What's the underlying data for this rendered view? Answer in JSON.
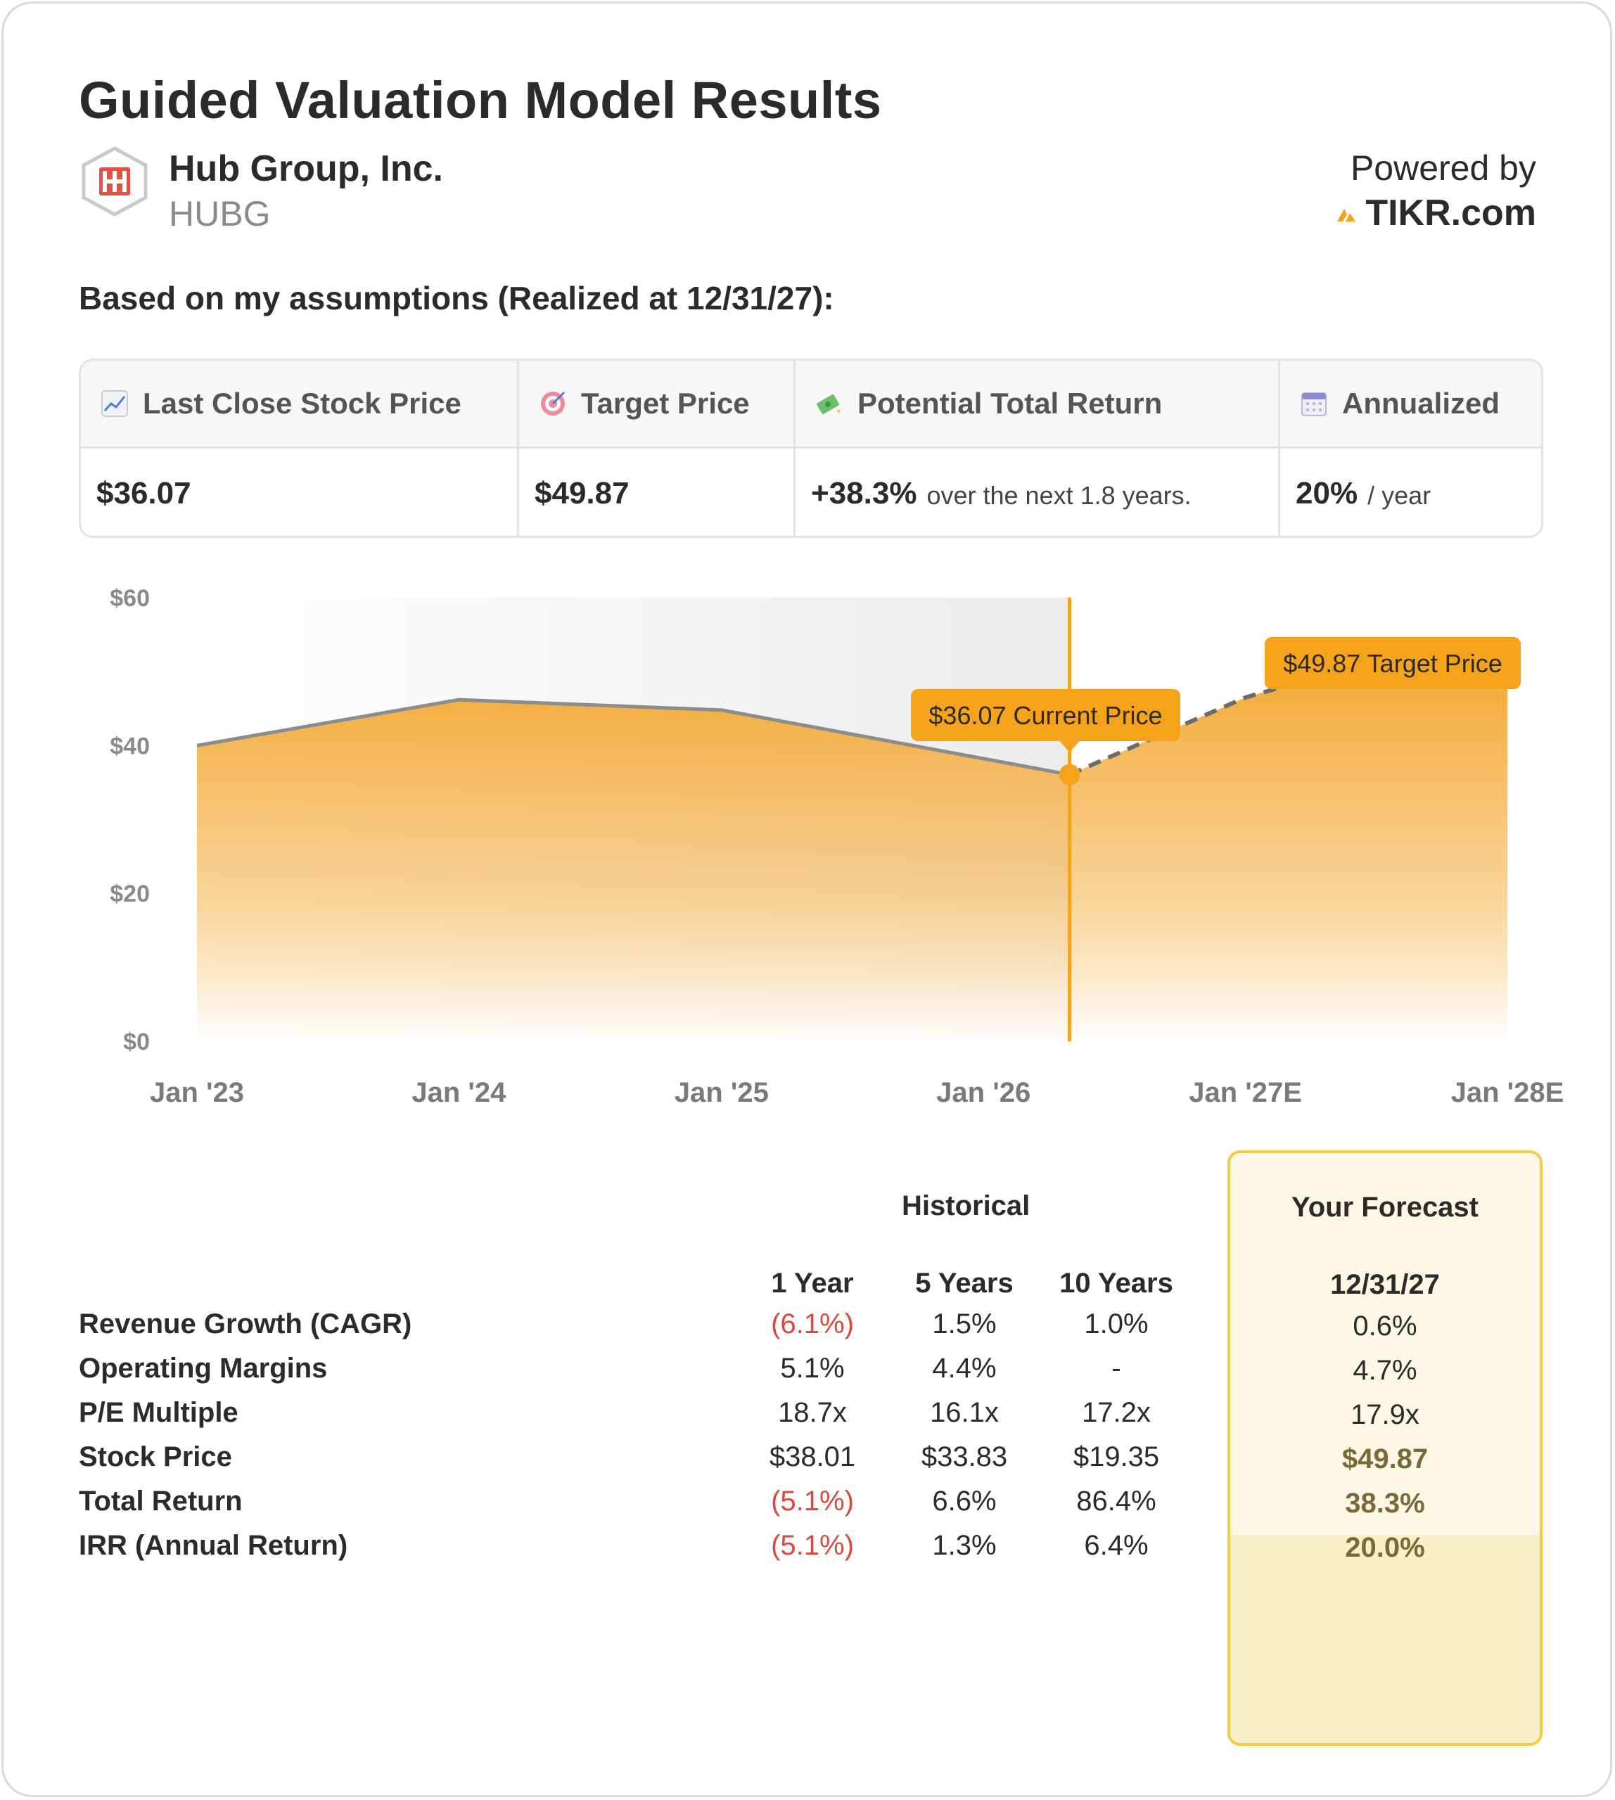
{
  "title": "Guided Valuation Model Results",
  "company": {
    "name": "Hub Group, Inc.",
    "ticker": "HUBG",
    "logo_text": "HI"
  },
  "powered": {
    "line1": "Powered by",
    "brand": "TIKR.com"
  },
  "assumptions_line": "Based on my assumptions (Realized at 12/31/27):",
  "metrics": {
    "last_close": {
      "label": "Last Close Stock Price",
      "icon": "chart-up-icon",
      "value": "$36.07"
    },
    "target": {
      "label": "Target Price",
      "icon": "target-icon",
      "value": "$49.87"
    },
    "total_return": {
      "label": "Potential Total Return",
      "icon": "money-icon",
      "value": "+38.3%",
      "suffix": "over the next 1.8 years."
    },
    "annualized": {
      "label": "Annualized",
      "icon": "calendar-icon",
      "value": "20%",
      "suffix": "/ year"
    }
  },
  "chart_data": {
    "type": "area",
    "x_ticks": [
      "Jan '23",
      "Jan '24",
      "Jan '25",
      "Jan '26",
      "Jan '27E",
      "Jan '28E"
    ],
    "y_ticks": [
      "$60",
      "$40",
      "$20",
      "$0"
    ],
    "ylim": [
      0,
      60
    ],
    "historical": [
      {
        "x": "2023-01",
        "y": 40
      },
      {
        "x": "2024-01",
        "y": 46.2
      },
      {
        "x": "2025-01",
        "y": 44.8
      },
      {
        "x": "2026-05",
        "y": 36.07
      }
    ],
    "forecast": [
      {
        "x": "2026-05",
        "y": 36.07
      },
      {
        "x": "2027-01",
        "y": 46.5
      },
      {
        "x": "2027-05",
        "y": 49.87
      },
      {
        "x": "2028-01",
        "y": 49.87
      }
    ],
    "annotations": {
      "current": {
        "value": 36.07,
        "label": "$36.07 Current Price"
      },
      "target": {
        "value": 49.87,
        "label": "$49.87 Target Price"
      }
    },
    "colors": {
      "fill": "#f2a52a",
      "line": "#8c8c8c",
      "accent": "#f5a31a"
    }
  },
  "table": {
    "historical_label": "Historical",
    "forecast_label": "Your Forecast",
    "columns": [
      "1 Year",
      "5 Years",
      "10 Years"
    ],
    "forecast_date": "12/31/27",
    "rows": [
      {
        "label": "Revenue Growth (CAGR)",
        "values": [
          "(6.1%)",
          "1.5%",
          "1.0%"
        ],
        "forecast": "0.6%"
      },
      {
        "label": "Operating Margins",
        "values": [
          "5.1%",
          "4.4%",
          "-"
        ],
        "forecast": "4.7%"
      },
      {
        "label": "P/E Multiple",
        "values": [
          "18.7x",
          "16.1x",
          "17.2x"
        ],
        "forecast": "17.9x"
      },
      {
        "label": "Stock Price",
        "values": [
          "$38.01",
          "$33.83",
          "$19.35"
        ],
        "forecast": "$49.87"
      },
      {
        "label": "Total Return",
        "values": [
          "(5.1%)",
          "6.6%",
          "86.4%"
        ],
        "forecast": "38.3%"
      },
      {
        "label": "IRR (Annual Return)",
        "values": [
          "(5.1%)",
          "1.3%",
          "6.4%"
        ],
        "forecast": "20.0%"
      }
    ]
  }
}
